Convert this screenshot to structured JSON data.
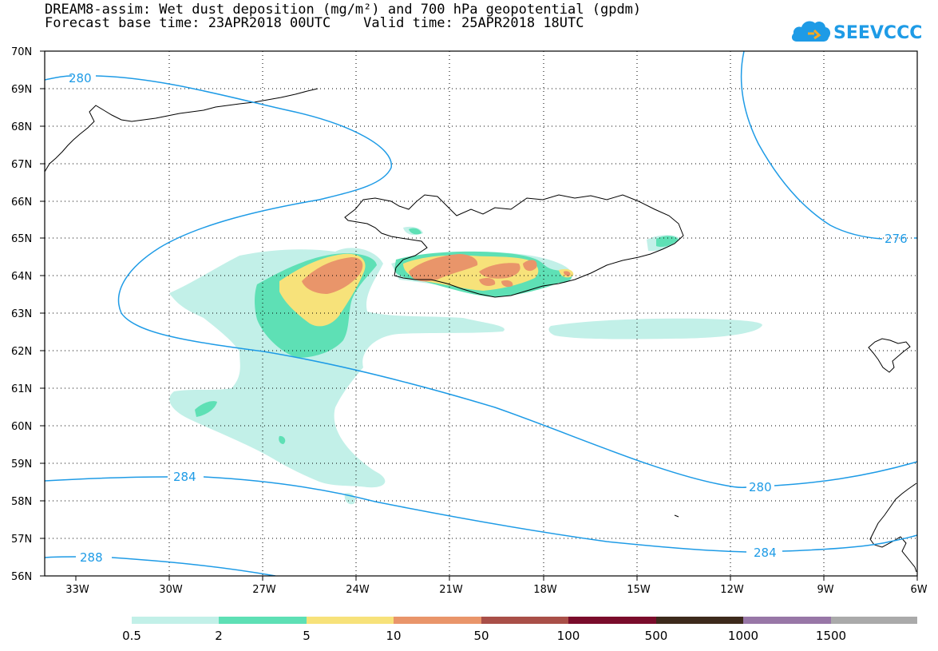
{
  "title": {
    "line1": "DREAM8-assim: Wet dust deposition (mg/m²) and 700 hPa geopotential (gpdm)",
    "line2": "Forecast base time: 23APR2018 00UTC    Valid time: 25APR2018 18UTC"
  },
  "logo": {
    "text": "SEEVCCC",
    "icon": "cloud-icon",
    "color": "#1e9be6"
  },
  "colors": {
    "isoline": "#1e9be6",
    "coast": "#000000",
    "grid": "#000000"
  },
  "axes": {
    "lat_labels": [
      "70N",
      "69N",
      "68N",
      "67N",
      "66N",
      "65N",
      "64N",
      "63N",
      "62N",
      "61N",
      "60N",
      "59N",
      "58N",
      "57N",
      "56N"
    ],
    "lon_labels": [
      "33W",
      "30W",
      "27W",
      "24W",
      "21W",
      "18W",
      "15W",
      "12W",
      "9W",
      "6W"
    ]
  },
  "isolines": [
    {
      "value": "280",
      "label": "280"
    },
    {
      "value": "276",
      "label": "276"
    },
    {
      "value": "284",
      "label": "284"
    },
    {
      "value": "288",
      "label": "288"
    }
  ],
  "legend": {
    "labels": [
      "0.5",
      "2",
      "5",
      "10",
      "50",
      "100",
      "500",
      "1000",
      "1500"
    ],
    "colors": [
      "#c2f0e8",
      "#5ee0b5",
      "#f7e27a",
      "#e9956a",
      "#a94f48",
      "#7a0c2b",
      "#3d2a1c",
      "#9877a7",
      "#aaaaaa"
    ]
  }
}
